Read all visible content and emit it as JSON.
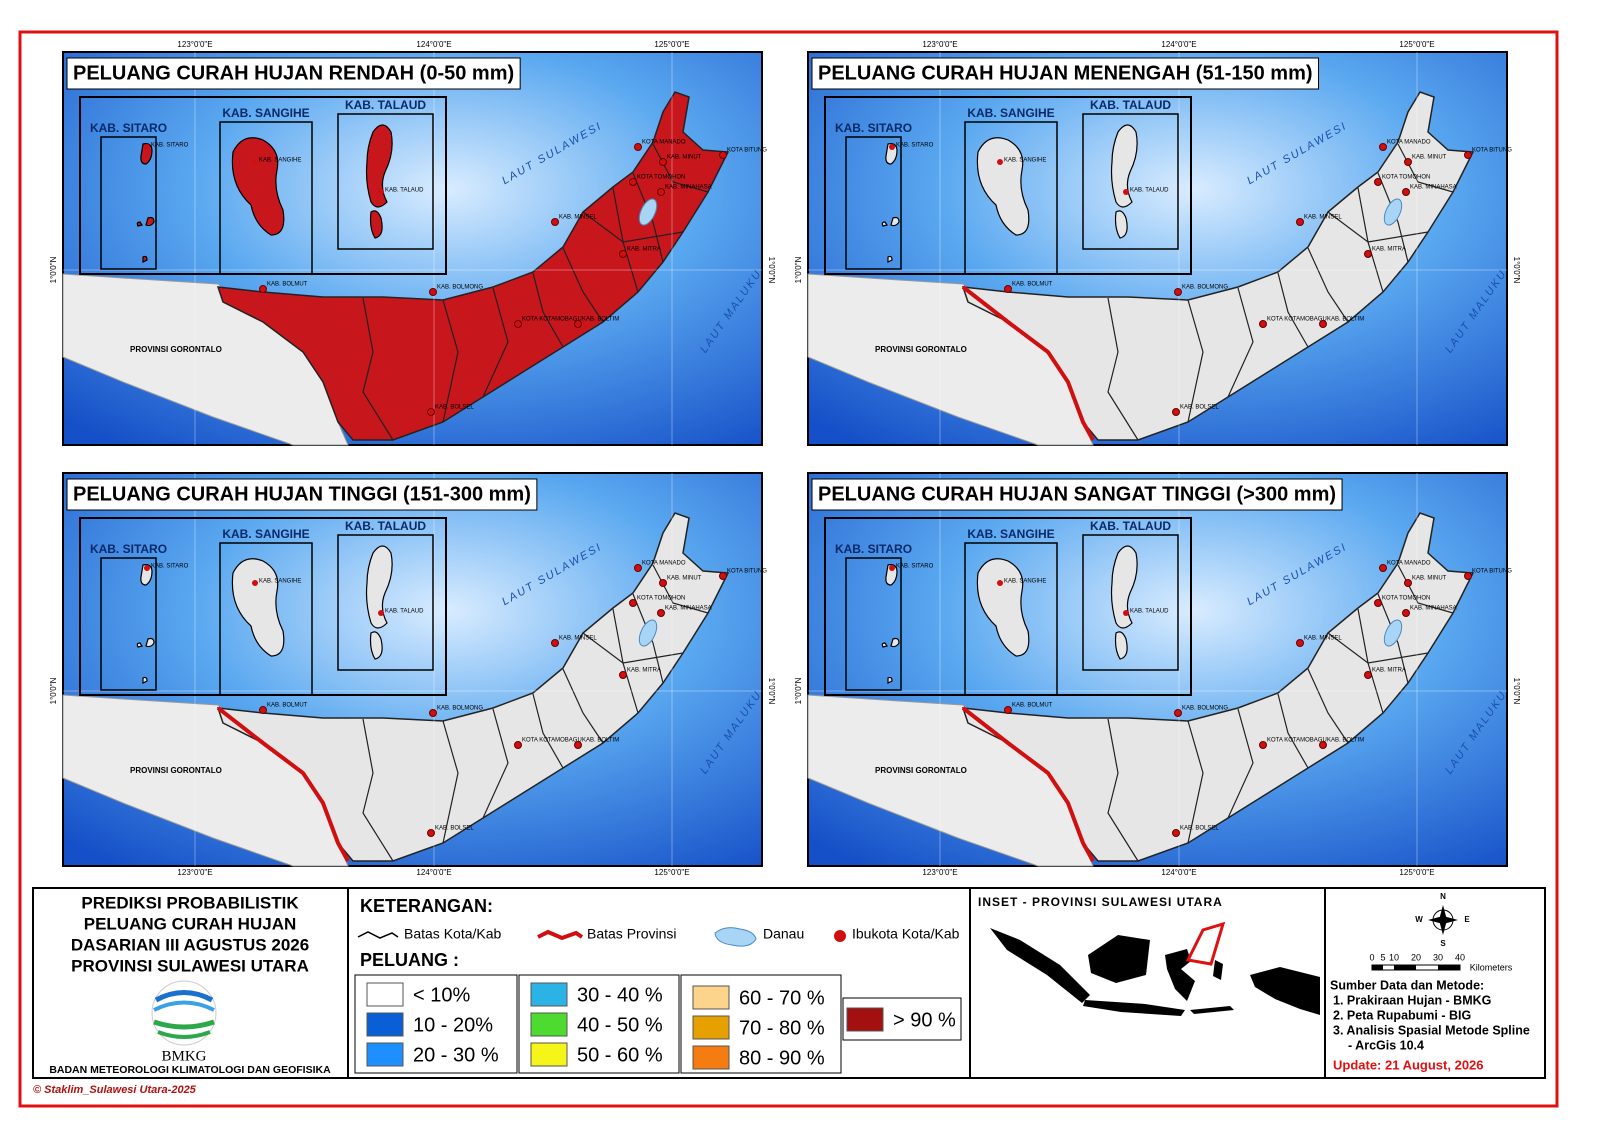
{
  "frame": {
    "lon_ticks": [
      "123°0'0\"E",
      "124°0'0\"E",
      "125°0'0\"E"
    ],
    "lat_tick": "1°0'0\"N"
  },
  "maps": [
    {
      "title": "PELUANG CURAH HUJAN RENDAH (0-50 mm)",
      "fill": "#c8161d"
    },
    {
      "title": "PELUANG CURAH HUJAN MENENGAH (51-150 mm)",
      "fill": "#e6e6e6"
    },
    {
      "title": "PELUANG CURAH HUJAN TINGGI (151-300 mm)",
      "fill": "#e6e6e6"
    },
    {
      "title": "PELUANG CURAH HUJAN SANGAT TINGGI (>300 mm)",
      "fill": "#e6e6e6"
    }
  ],
  "map_labels": {
    "insets": [
      "KAB. SITARO",
      "KAB. SANGIHE",
      "KAB. TALAUD"
    ],
    "places": [
      "KAB. BOLMUT",
      "KAB. BOLMONG",
      "KOTA KOTAMOBAGU",
      "KAB. BOLTIM",
      "KAB. BOLSEL",
      "KAB. MINSEL",
      "KAB. MITRA",
      "KOTA TOMOHON",
      "KAB. MINAHASA",
      "KOTA MANADO",
      "KAB. MINUT",
      "KOTA BITUNG"
    ],
    "seas": [
      "LAUT SULAWESI",
      "LAUT MALUKU"
    ],
    "province": "PROVINSI GORONTALO"
  },
  "title_block": {
    "lines": [
      "PREDIKSI PROBABILISTIK",
      "PELUANG CURAH HUJAN",
      "DASARIAN III AGUSTUS 2026",
      "PROVINSI SULAWESI UTARA"
    ],
    "logo_text": "BMKG",
    "agency": "BADAN METEOROLOGI KLIMATOLOGI DAN GEOFISIKA"
  },
  "legend": {
    "heading": "KETERANGAN:",
    "items": [
      "Batas Kota/Kab",
      "Batas Provinsi",
      "Danau",
      "Ibukota Kota/Kab"
    ],
    "peluang_heading": "PELUANG :",
    "classes": [
      {
        "label": "< 10%",
        "color": "#ffffff"
      },
      {
        "label": "10 - 20%",
        "color": "#0a5fd6"
      },
      {
        "label": "20 - 30 %",
        "color": "#1e8fff"
      },
      {
        "label": "30 - 40 %",
        "color": "#2cb3e6"
      },
      {
        "label": "40 - 50 %",
        "color": "#4cdb2e"
      },
      {
        "label": "50 - 60 %",
        "color": "#f5f51a"
      },
      {
        "label": "60 - 70 %",
        "color": "#fdd48c"
      },
      {
        "label": "70 - 80 %",
        "color": "#e6a000"
      },
      {
        "label": "80 - 90 %",
        "color": "#f57c10"
      },
      {
        "label": "> 90 %",
        "color": "#a31010"
      }
    ]
  },
  "inset": {
    "title": "INSET - PROVINSI SULAWESI UTARA"
  },
  "compass": [
    "N",
    "E",
    "S",
    "W"
  ],
  "scale": {
    "labels": [
      "0",
      "5",
      "10",
      "20",
      "30",
      "40"
    ],
    "unit": "Kilometers"
  },
  "sources": {
    "heading": "Sumber Data dan Metode:",
    "lines": [
      "1. Prakiraan Hujan - BMKG",
      "2. Peta Rupabumi - BIG",
      "3. Analisis Spasial Metode Spline",
      "- ArcGis 10.4"
    ]
  },
  "update": "Update: 21 August, 2026",
  "copyright": "© Staklim_Sulawesi Utara-2025"
}
